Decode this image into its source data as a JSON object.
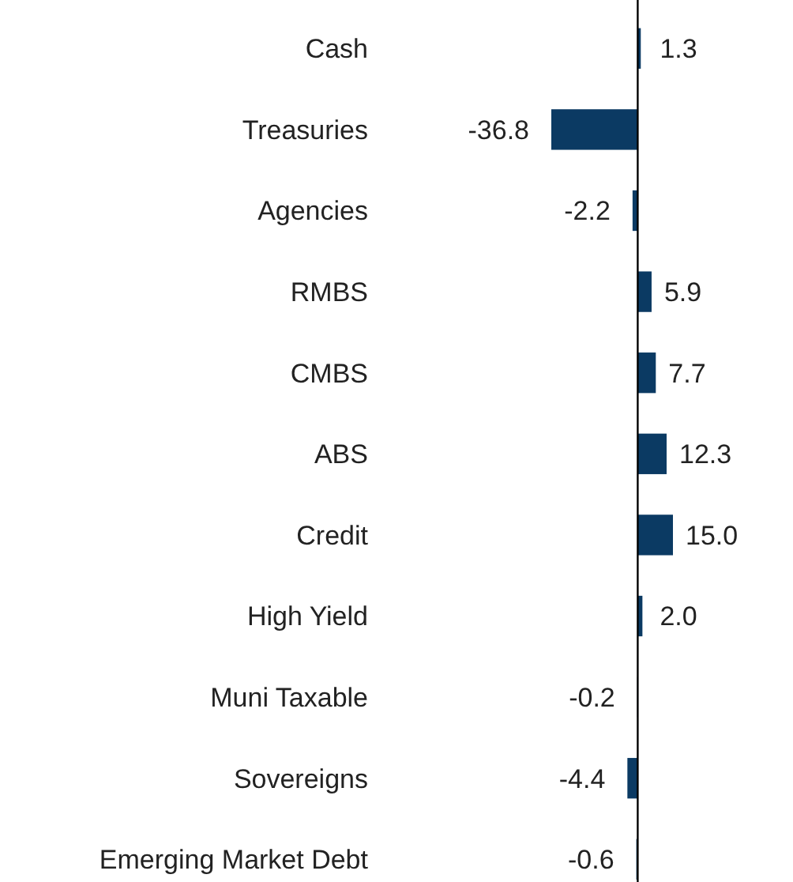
{
  "chart_data": {
    "type": "bar",
    "orientation": "horizontal",
    "categories": [
      "Cash",
      "Treasuries",
      "Agencies",
      "RMBS",
      "CMBS",
      "ABS",
      "Credit",
      "High Yield",
      "Muni Taxable",
      "Sovereigns",
      "Emerging Market Debt"
    ],
    "values": [
      1.3,
      -36.8,
      -2.2,
      5.9,
      7.7,
      12.3,
      15.0,
      2.0,
      -0.2,
      -4.4,
      -0.6
    ],
    "value_labels": [
      "1.3",
      "-36.8",
      "-2.2",
      "5.9",
      "7.7",
      "12.3",
      "15.0",
      "2.0",
      "-0.2",
      "-4.4",
      "-0.6"
    ],
    "color": "#0b3a63"
  }
}
